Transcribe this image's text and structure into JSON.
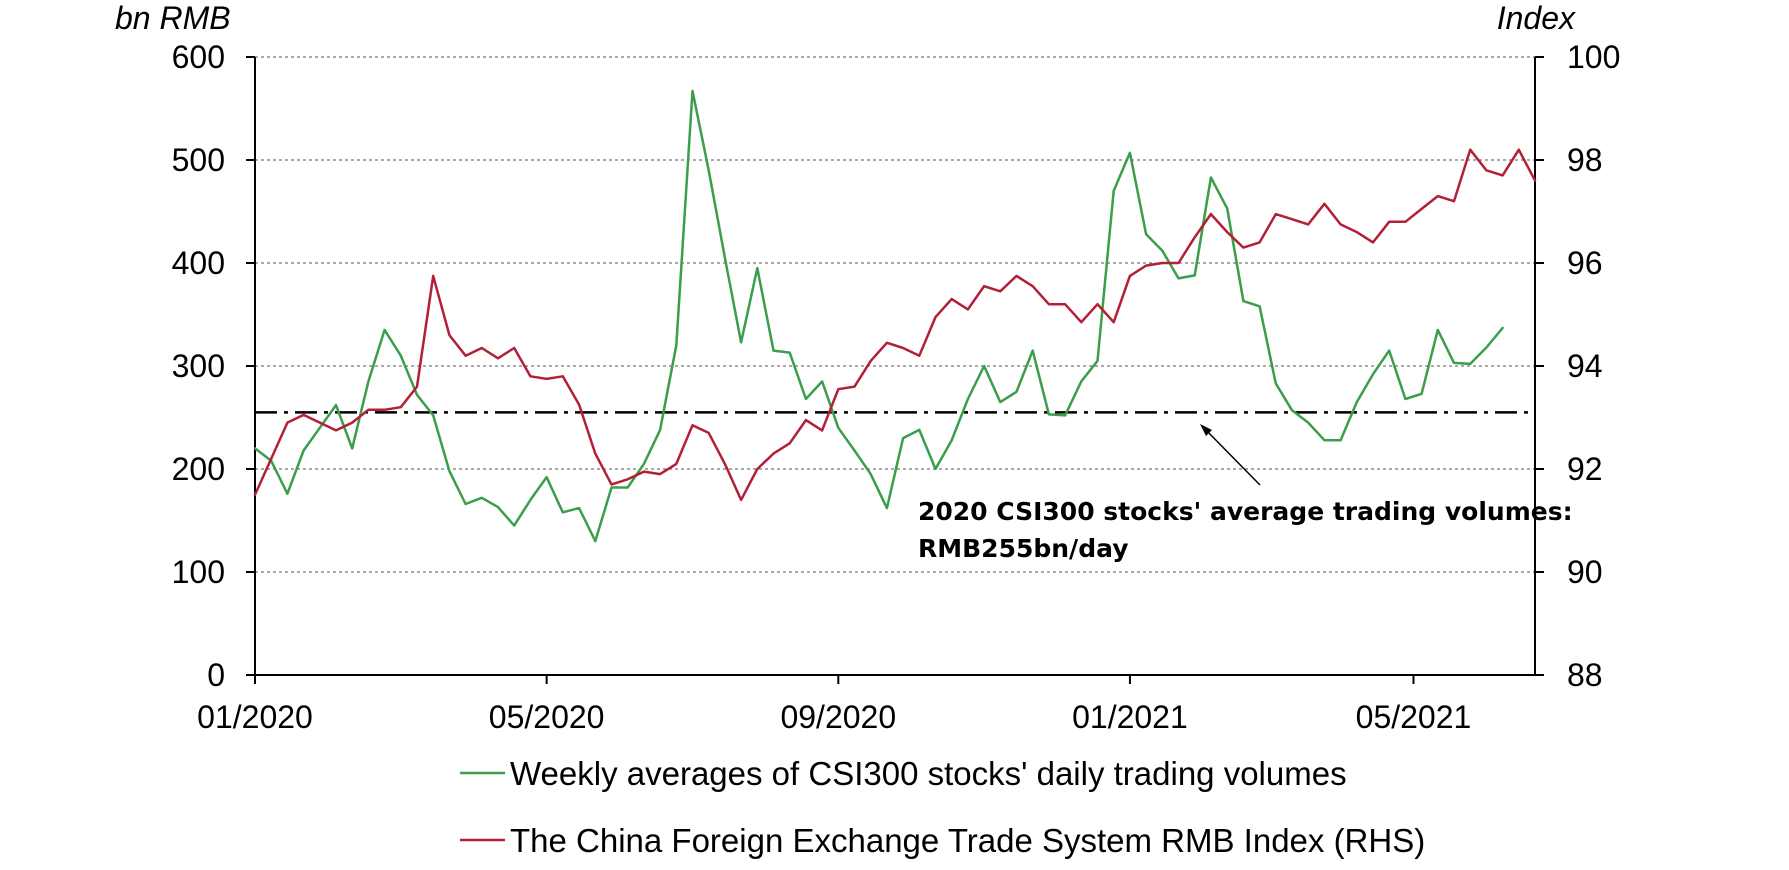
{
  "chart_data": {
    "type": "line",
    "left_axis_title": "bn RMB",
    "right_axis_title": "Index",
    "y_left": {
      "min": 0,
      "max": 600,
      "ticks": [
        0,
        100,
        200,
        300,
        400,
        500,
        600
      ],
      "tick_labels": [
        "0",
        "100",
        "200",
        "300",
        "400",
        "500",
        "600"
      ]
    },
    "y_right": {
      "min": 88,
      "max": 100,
      "ticks": [
        88,
        90,
        92,
        94,
        96,
        98,
        100
      ],
      "tick_labels": [
        "88",
        "90",
        "92",
        "94",
        "96",
        "98",
        "100"
      ]
    },
    "x_range": {
      "start_week": 0,
      "end_week": 79
    },
    "x_ticks": [
      {
        "week": 0,
        "label": "01/2020"
      },
      {
        "week": 18,
        "label": "05/2020"
      },
      {
        "week": 36,
        "label": "09/2020"
      },
      {
        "week": 54,
        "label": "01/2021"
      },
      {
        "week": 71.5,
        "label": "05/2021"
      }
    ],
    "grid": true,
    "series": [
      {
        "name": "Weekly averages of CSI300 stocks' daily trading volumes",
        "axis": "left",
        "color": "#3a9e4b",
        "values": [
          220,
          208,
          176,
          218,
          240,
          262,
          220,
          285,
          335,
          310,
          272,
          252,
          198,
          166,
          172,
          163,
          145,
          170,
          192,
          158,
          162,
          130,
          182,
          182,
          205,
          238,
          320,
          567,
          490,
          405,
          323,
          395,
          315,
          313,
          268,
          285,
          240,
          218,
          195,
          162,
          230,
          238,
          200,
          228,
          268,
          300,
          265,
          275,
          315,
          253,
          252,
          285,
          305,
          470,
          507,
          428,
          412,
          385,
          388,
          483,
          453,
          363,
          358,
          283,
          257,
          245,
          228,
          228,
          265,
          292,
          315,
          268,
          273,
          335,
          303,
          302,
          318,
          337
        ]
      },
      {
        "name": "The China Foreign Exchange Trade System RMB Index (RHS)",
        "axis": "right",
        "color": "#b31f36",
        "values": [
          91.5,
          92.2,
          92.9,
          93.05,
          92.9,
          92.75,
          92.9,
          93.15,
          93.15,
          93.2,
          93.6,
          95.75,
          94.6,
          94.2,
          94.35,
          94.15,
          94.35,
          93.8,
          93.75,
          93.8,
          93.25,
          92.3,
          91.7,
          91.8,
          91.95,
          91.9,
          92.1,
          92.85,
          92.7,
          92.1,
          91.4,
          92.0,
          92.3,
          92.5,
          92.95,
          92.75,
          93.55,
          93.6,
          94.1,
          94.45,
          94.35,
          94.2,
          94.95,
          95.3,
          95.1,
          95.55,
          95.45,
          95.75,
          95.55,
          95.2,
          95.2,
          94.85,
          95.2,
          94.85,
          95.75,
          95.95,
          96.0,
          96.0,
          96.5,
          96.95,
          96.6,
          96.3,
          96.4,
          96.95,
          96.85,
          96.75,
          97.15,
          96.75,
          96.6,
          96.4,
          96.8,
          96.8,
          97.05,
          97.3,
          97.2,
          98.2,
          97.8,
          97.7,
          98.2,
          97.6
        ]
      }
    ],
    "reference_line": {
      "axis": "left",
      "value": 255,
      "label_line1": "2020 CSI300 stocks' average trading volumes:",
      "label_line2": "RMB255bn/day"
    },
    "legend": {
      "position": "bottom-center",
      "entries": [
        "Weekly averages of CSI300 stocks' daily trading volumes",
        "The China Foreign Exchange Trade System RMB Index (RHS)"
      ]
    }
  }
}
